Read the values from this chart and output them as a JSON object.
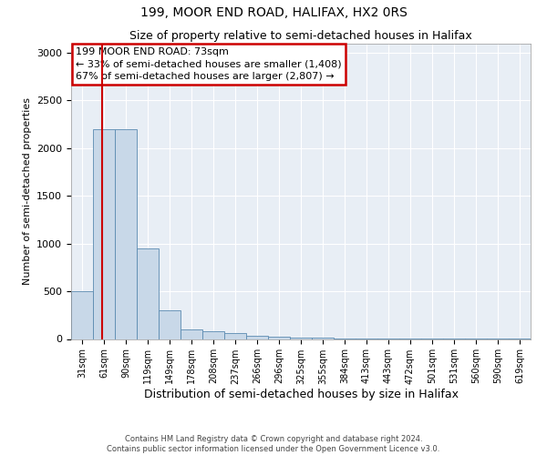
{
  "title1": "199, MOOR END ROAD, HALIFAX, HX2 0RS",
  "title2": "Size of property relative to semi-detached houses in Halifax",
  "xlabel": "Distribution of semi-detached houses by size in Halifax",
  "ylabel": "Number of semi-detached properties",
  "footnote1": "Contains HM Land Registry data © Crown copyright and database right 2024.",
  "footnote2": "Contains public sector information licensed under the Open Government Licence v3.0.",
  "annotation_title": "199 MOOR END ROAD: 73sqm",
  "annotation_line1": "← 33% of semi-detached houses are smaller (1,408)",
  "annotation_line2": "67% of semi-detached houses are larger (2,807) →",
  "property_size": 73,
  "categories": [
    "31sqm",
    "61sqm",
    "90sqm",
    "119sqm",
    "149sqm",
    "178sqm",
    "208sqm",
    "237sqm",
    "266sqm",
    "296sqm",
    "325sqm",
    "355sqm",
    "384sqm",
    "413sqm",
    "443sqm",
    "472sqm",
    "501sqm",
    "531sqm",
    "560sqm",
    "590sqm",
    "619sqm"
  ],
  "bin_edges": [
    31,
    61,
    90,
    119,
    149,
    178,
    208,
    237,
    266,
    296,
    325,
    355,
    384,
    413,
    443,
    472,
    501,
    531,
    560,
    590,
    619,
    648
  ],
  "values": [
    500,
    2200,
    2200,
    950,
    300,
    100,
    80,
    60,
    30,
    20,
    15,
    10,
    8,
    6,
    5,
    4,
    3,
    3,
    2,
    2,
    2
  ],
  "bar_color": "#c8d8e8",
  "bar_edge_color": "#5a8ab0",
  "red_line_color": "#cc0000",
  "annotation_box_color": "#cc0000",
  "background_color": "#e8eef5",
  "ylim": [
    0,
    3100
  ],
  "yticks": [
    0,
    500,
    1000,
    1500,
    2000,
    2500,
    3000
  ],
  "title1_fontsize": 10,
  "title2_fontsize": 9,
  "ylabel_fontsize": 8,
  "xlabel_fontsize": 9,
  "tick_fontsize": 8,
  "xtick_fontsize": 7,
  "footnote_fontsize": 6,
  "ann_fontsize": 8
}
